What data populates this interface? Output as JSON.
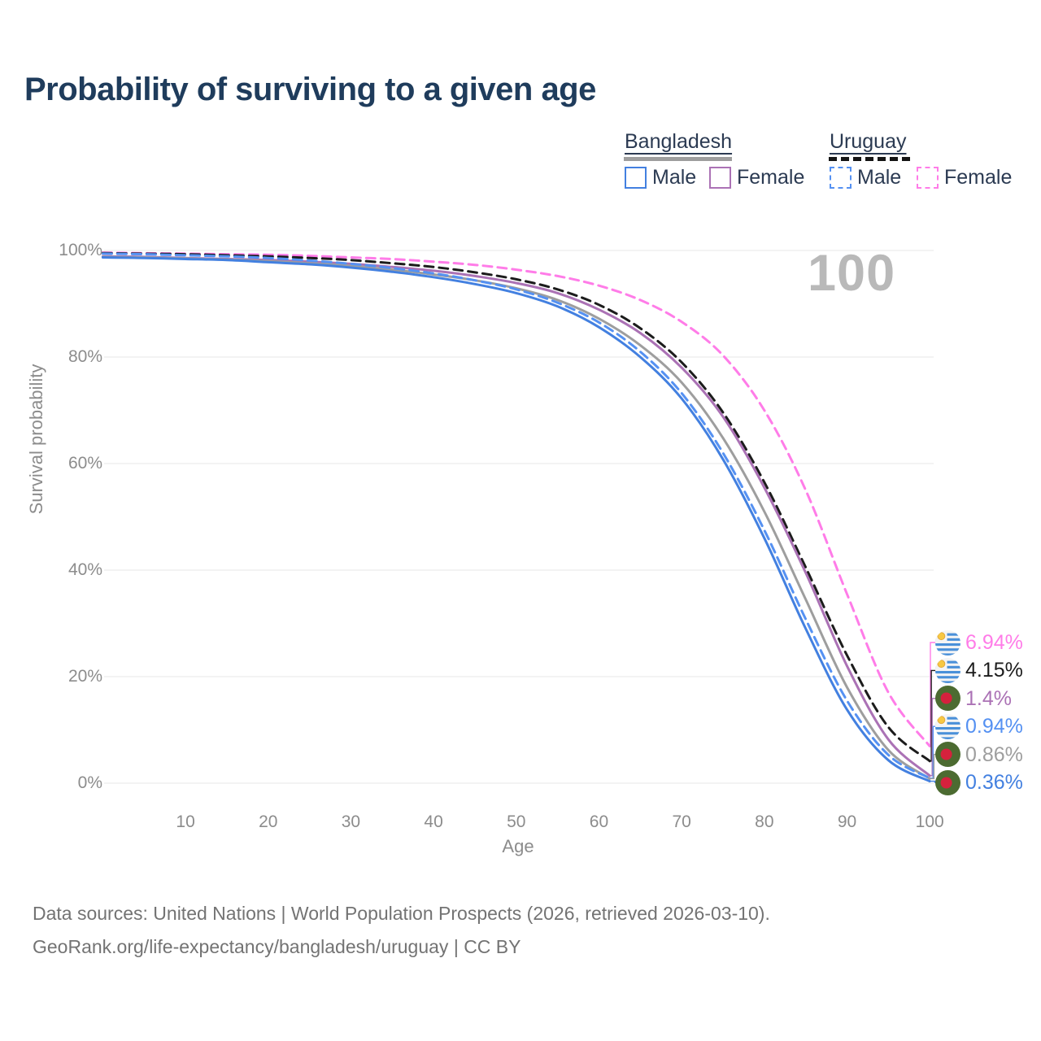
{
  "title": "Probability of surviving to a given age",
  "watermark_age": "100",
  "legend": {
    "groups": [
      {
        "label": "Bangladesh",
        "line_style": "solid",
        "line_color": "#9e9e9e",
        "items": [
          {
            "label": "Male",
            "color": "#4380e0",
            "style": "solid"
          },
          {
            "label": "Female",
            "color": "#ab72b5",
            "style": "solid"
          }
        ]
      },
      {
        "label": "Uruguay",
        "line_style": "dashed",
        "line_color": "#141414",
        "items": [
          {
            "label": "Male",
            "color": "#5591f2",
            "style": "dashed"
          },
          {
            "label": "Female",
            "color": "#ff7ce8",
            "style": "dashed"
          }
        ]
      }
    ]
  },
  "chart_data": {
    "type": "line",
    "title": "Probability of surviving to a given age",
    "xlabel": "Age",
    "ylabel": "Survival probability",
    "xlim": [
      0,
      100
    ],
    "ylim": [
      0,
      100
    ],
    "grid": "horizontal",
    "legend_position": "top-right",
    "x_ticks": [
      {
        "label": "10",
        "v": 10
      },
      {
        "label": "20",
        "v": 20
      },
      {
        "label": "30",
        "v": 30
      },
      {
        "label": "40",
        "v": 40
      },
      {
        "label": "50",
        "v": 50
      },
      {
        "label": "60",
        "v": 60
      },
      {
        "label": "70",
        "v": 70
      },
      {
        "label": "80",
        "v": 80
      },
      {
        "label": "90",
        "v": 90
      },
      {
        "label": "100",
        "v": 100
      }
    ],
    "y_ticks": [
      {
        "label": "0%",
        "v": 0
      },
      {
        "label": "20%",
        "v": 20
      },
      {
        "label": "40%",
        "v": 40
      },
      {
        "label": "60%",
        "v": 60
      },
      {
        "label": "80%",
        "v": 80
      },
      {
        "label": "100%",
        "v": 100
      }
    ],
    "ages": [
      0,
      5,
      10,
      15,
      20,
      25,
      30,
      35,
      40,
      45,
      50,
      55,
      60,
      65,
      70,
      75,
      80,
      85,
      90,
      95,
      100
    ],
    "series": [
      {
        "name": "Uruguay Female",
        "country": "Uruguay",
        "sex": "Female",
        "flag": "uruguay",
        "color": "#ff7ce8",
        "dash": true,
        "end_label": "6.94%",
        "values": [
          99.6,
          99.5,
          99.4,
          99.3,
          99.2,
          99.0,
          98.7,
          98.4,
          97.9,
          97.3,
          96.4,
          95.2,
          93.4,
          90.7,
          86.6,
          80.3,
          70.0,
          55.0,
          35.5,
          17.0,
          6.94
        ]
      },
      {
        "name": "Uruguay",
        "country": "Uruguay",
        "sex": "Both",
        "flag": "uruguay",
        "color": "#1c1c1c",
        "dash": true,
        "end_label": "4.15%",
        "values": [
          99.5,
          99.4,
          99.3,
          99.1,
          98.9,
          98.6,
          98.2,
          97.6,
          96.9,
          95.9,
          94.6,
          92.7,
          89.8,
          85.4,
          79.0,
          69.6,
          56.5,
          40.5,
          24.0,
          10.5,
          4.15
        ]
      },
      {
        "name": "Bangladesh Female",
        "country": "Bangladesh",
        "sex": "Female",
        "flag": "bangladesh",
        "color": "#ab72b5",
        "dash": false,
        "end_label": "1.4%",
        "values": [
          98.9,
          98.8,
          98.6,
          98.4,
          98.2,
          97.9,
          97.5,
          96.9,
          96.2,
          95.2,
          93.9,
          92.0,
          88.9,
          84.5,
          78.0,
          68.8,
          55.5,
          39.5,
          22.0,
          8.2,
          1.4
        ]
      },
      {
        "name": "Bangladesh",
        "country": "Bangladesh",
        "sex": "Both",
        "flag": "bangladesh",
        "color": "#9e9e9e",
        "dash": false,
        "end_label": "0.86%",
        "values": [
          98.8,
          98.7,
          98.5,
          98.3,
          98.0,
          97.6,
          97.1,
          96.4,
          95.5,
          94.4,
          92.9,
          90.7,
          87.2,
          82.2,
          75.2,
          64.8,
          51.0,
          34.5,
          18.0,
          6.2,
          0.86
        ]
      },
      {
        "name": "Uruguay Male",
        "country": "Uruguay",
        "sex": "Male",
        "flag": "uruguay",
        "color": "#5591f2",
        "dash": true,
        "end_label": "0.94%",
        "values": [
          99.4,
          99.3,
          99.1,
          98.9,
          98.6,
          98.1,
          97.5,
          96.7,
          95.7,
          94.4,
          92.7,
          90.2,
          86.5,
          81.0,
          73.2,
          62.0,
          47.5,
          30.8,
          15.5,
          5.3,
          0.94
        ]
      },
      {
        "name": "Bangladesh Male",
        "country": "Bangladesh",
        "sex": "Male",
        "flag": "bangladesh",
        "color": "#4380e0",
        "dash": false,
        "end_label": "0.36%",
        "values": [
          98.7,
          98.6,
          98.4,
          98.2,
          97.8,
          97.4,
          96.8,
          96.0,
          95.0,
          93.7,
          92.0,
          89.5,
          85.6,
          80.0,
          72.2,
          60.8,
          46.0,
          29.0,
          13.8,
          4.3,
          0.36
        ]
      }
    ]
  },
  "footer": {
    "line1": "Data sources: United Nations | World Population Prospects (2026, retrieved 2026-03-10).",
    "line2": "GeoRank.org/life-expectancy/bangladesh/uruguay | CC BY"
  }
}
